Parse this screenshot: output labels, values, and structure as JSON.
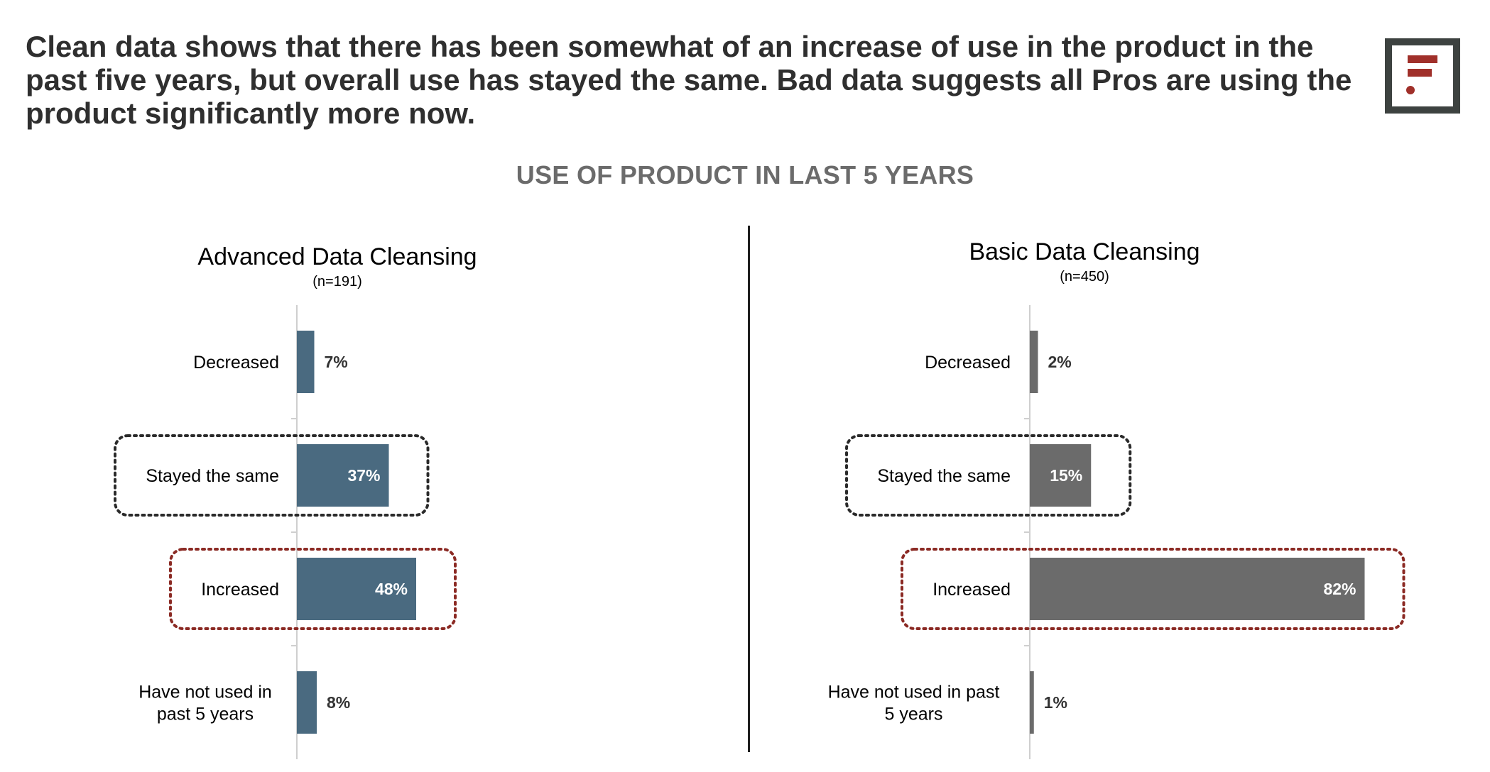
{
  "headline": "Clean data shows that there has been somewhat of an increase of use in the product in the past five years, but overall use has stayed the same. Bad data suggests all Pros are using the product significantly more now.",
  "section_title": "USE OF PRODUCT IN LAST 5 YEARS",
  "logo": {
    "icon": "brand-logo-icon",
    "frame_color": "#3d4240",
    "mark_color": "#a0302a"
  },
  "colors": {
    "highlight_gray": "#2a2a2a",
    "highlight_red": "#8b2a24",
    "axis": "#cfcfcf"
  },
  "chart_data": [
    {
      "type": "bar",
      "orientation": "horizontal",
      "title": "Advanced Data Cleansing",
      "subtitle": "(n=191)",
      "categories": [
        "Decreased",
        "Stayed the same",
        "Increased",
        "Have not used in past 5 years"
      ],
      "values": [
        7,
        37,
        48,
        8
      ],
      "value_labels": [
        "7%",
        "37%",
        "48%",
        "8%"
      ],
      "unit": "%",
      "bar_color": "#4a6a80",
      "highlights": [
        {
          "category": "Stayed the same",
          "style": "dotted",
          "color": "#2a2a2a"
        },
        {
          "category": "Increased",
          "style": "dotted",
          "color": "#8b2a24"
        }
      ]
    },
    {
      "type": "bar",
      "orientation": "horizontal",
      "title": "Basic Data Cleansing",
      "subtitle": "(n=450)",
      "categories": [
        "Decreased",
        "Stayed the same",
        "Increased",
        "Have not used in past 5 years"
      ],
      "values": [
        2,
        15,
        82,
        1
      ],
      "value_labels": [
        "2%",
        "15%",
        "82%",
        "1%"
      ],
      "unit": "%",
      "bar_color": "#6b6b6b",
      "highlights": [
        {
          "category": "Stayed the same",
          "style": "dotted",
          "color": "#2a2a2a"
        },
        {
          "category": "Increased",
          "style": "dotted",
          "color": "#8b2a24"
        }
      ]
    }
  ]
}
